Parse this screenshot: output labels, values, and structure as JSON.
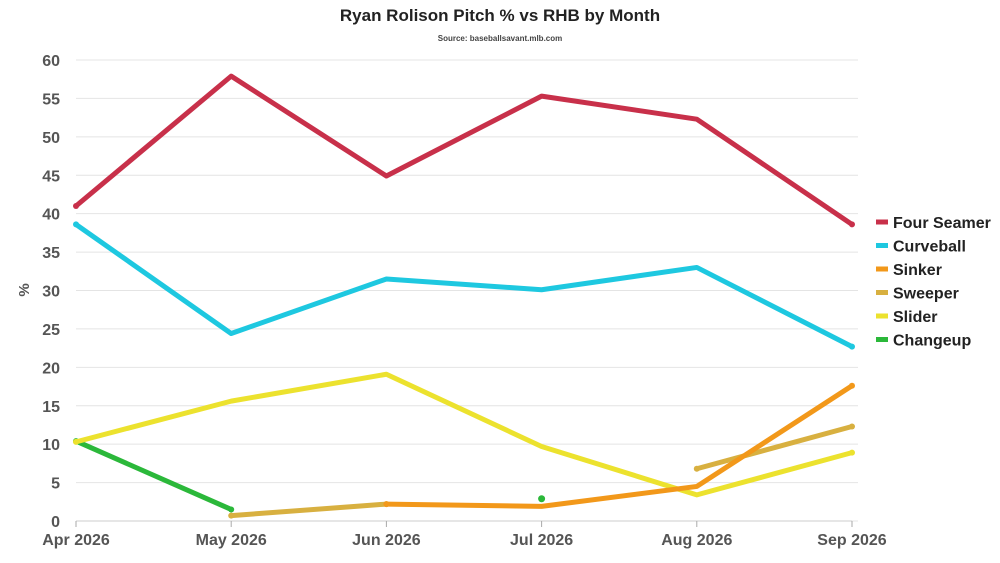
{
  "chart_data": {
    "type": "line",
    "title": "Ryan Rolison Pitch % vs RHB by Month",
    "subtitle": "Source: baseballsavant.mlb.com",
    "ylabel": "%",
    "xlabel": "",
    "ylim": [
      0,
      60
    ],
    "yticks": [
      0,
      5,
      10,
      15,
      20,
      25,
      30,
      35,
      40,
      45,
      50,
      55,
      60
    ],
    "grid": true,
    "legend_position": "right",
    "categories": [
      "Apr 2026",
      "May 2026",
      "Jun 2026",
      "Jul 2026",
      "Aug 2026",
      "Sep 2026"
    ],
    "series": [
      {
        "name": "Four Seamer",
        "color": "#c8304a",
        "values": [
          41.0,
          57.9,
          44.9,
          55.3,
          52.3,
          38.6
        ]
      },
      {
        "name": "Curveball",
        "color": "#1ec8e0",
        "values": [
          38.6,
          24.4,
          31.5,
          30.1,
          33.0,
          22.7
        ]
      },
      {
        "name": "Sinker",
        "color": "#f2981a",
        "values": [
          null,
          null,
          2.2,
          1.9,
          4.5,
          17.6
        ]
      },
      {
        "name": "Sweeper",
        "color": "#d8b040",
        "values": [
          null,
          0.7,
          2.2,
          null,
          6.8,
          12.3
        ]
      },
      {
        "name": "Slider",
        "color": "#ece22e",
        "values": [
          10.3,
          15.6,
          19.1,
          9.7,
          3.4,
          8.9
        ]
      },
      {
        "name": "Changeup",
        "color": "#2bb83a",
        "values": [
          10.4,
          1.5,
          null,
          2.9,
          null,
          null
        ]
      }
    ]
  }
}
